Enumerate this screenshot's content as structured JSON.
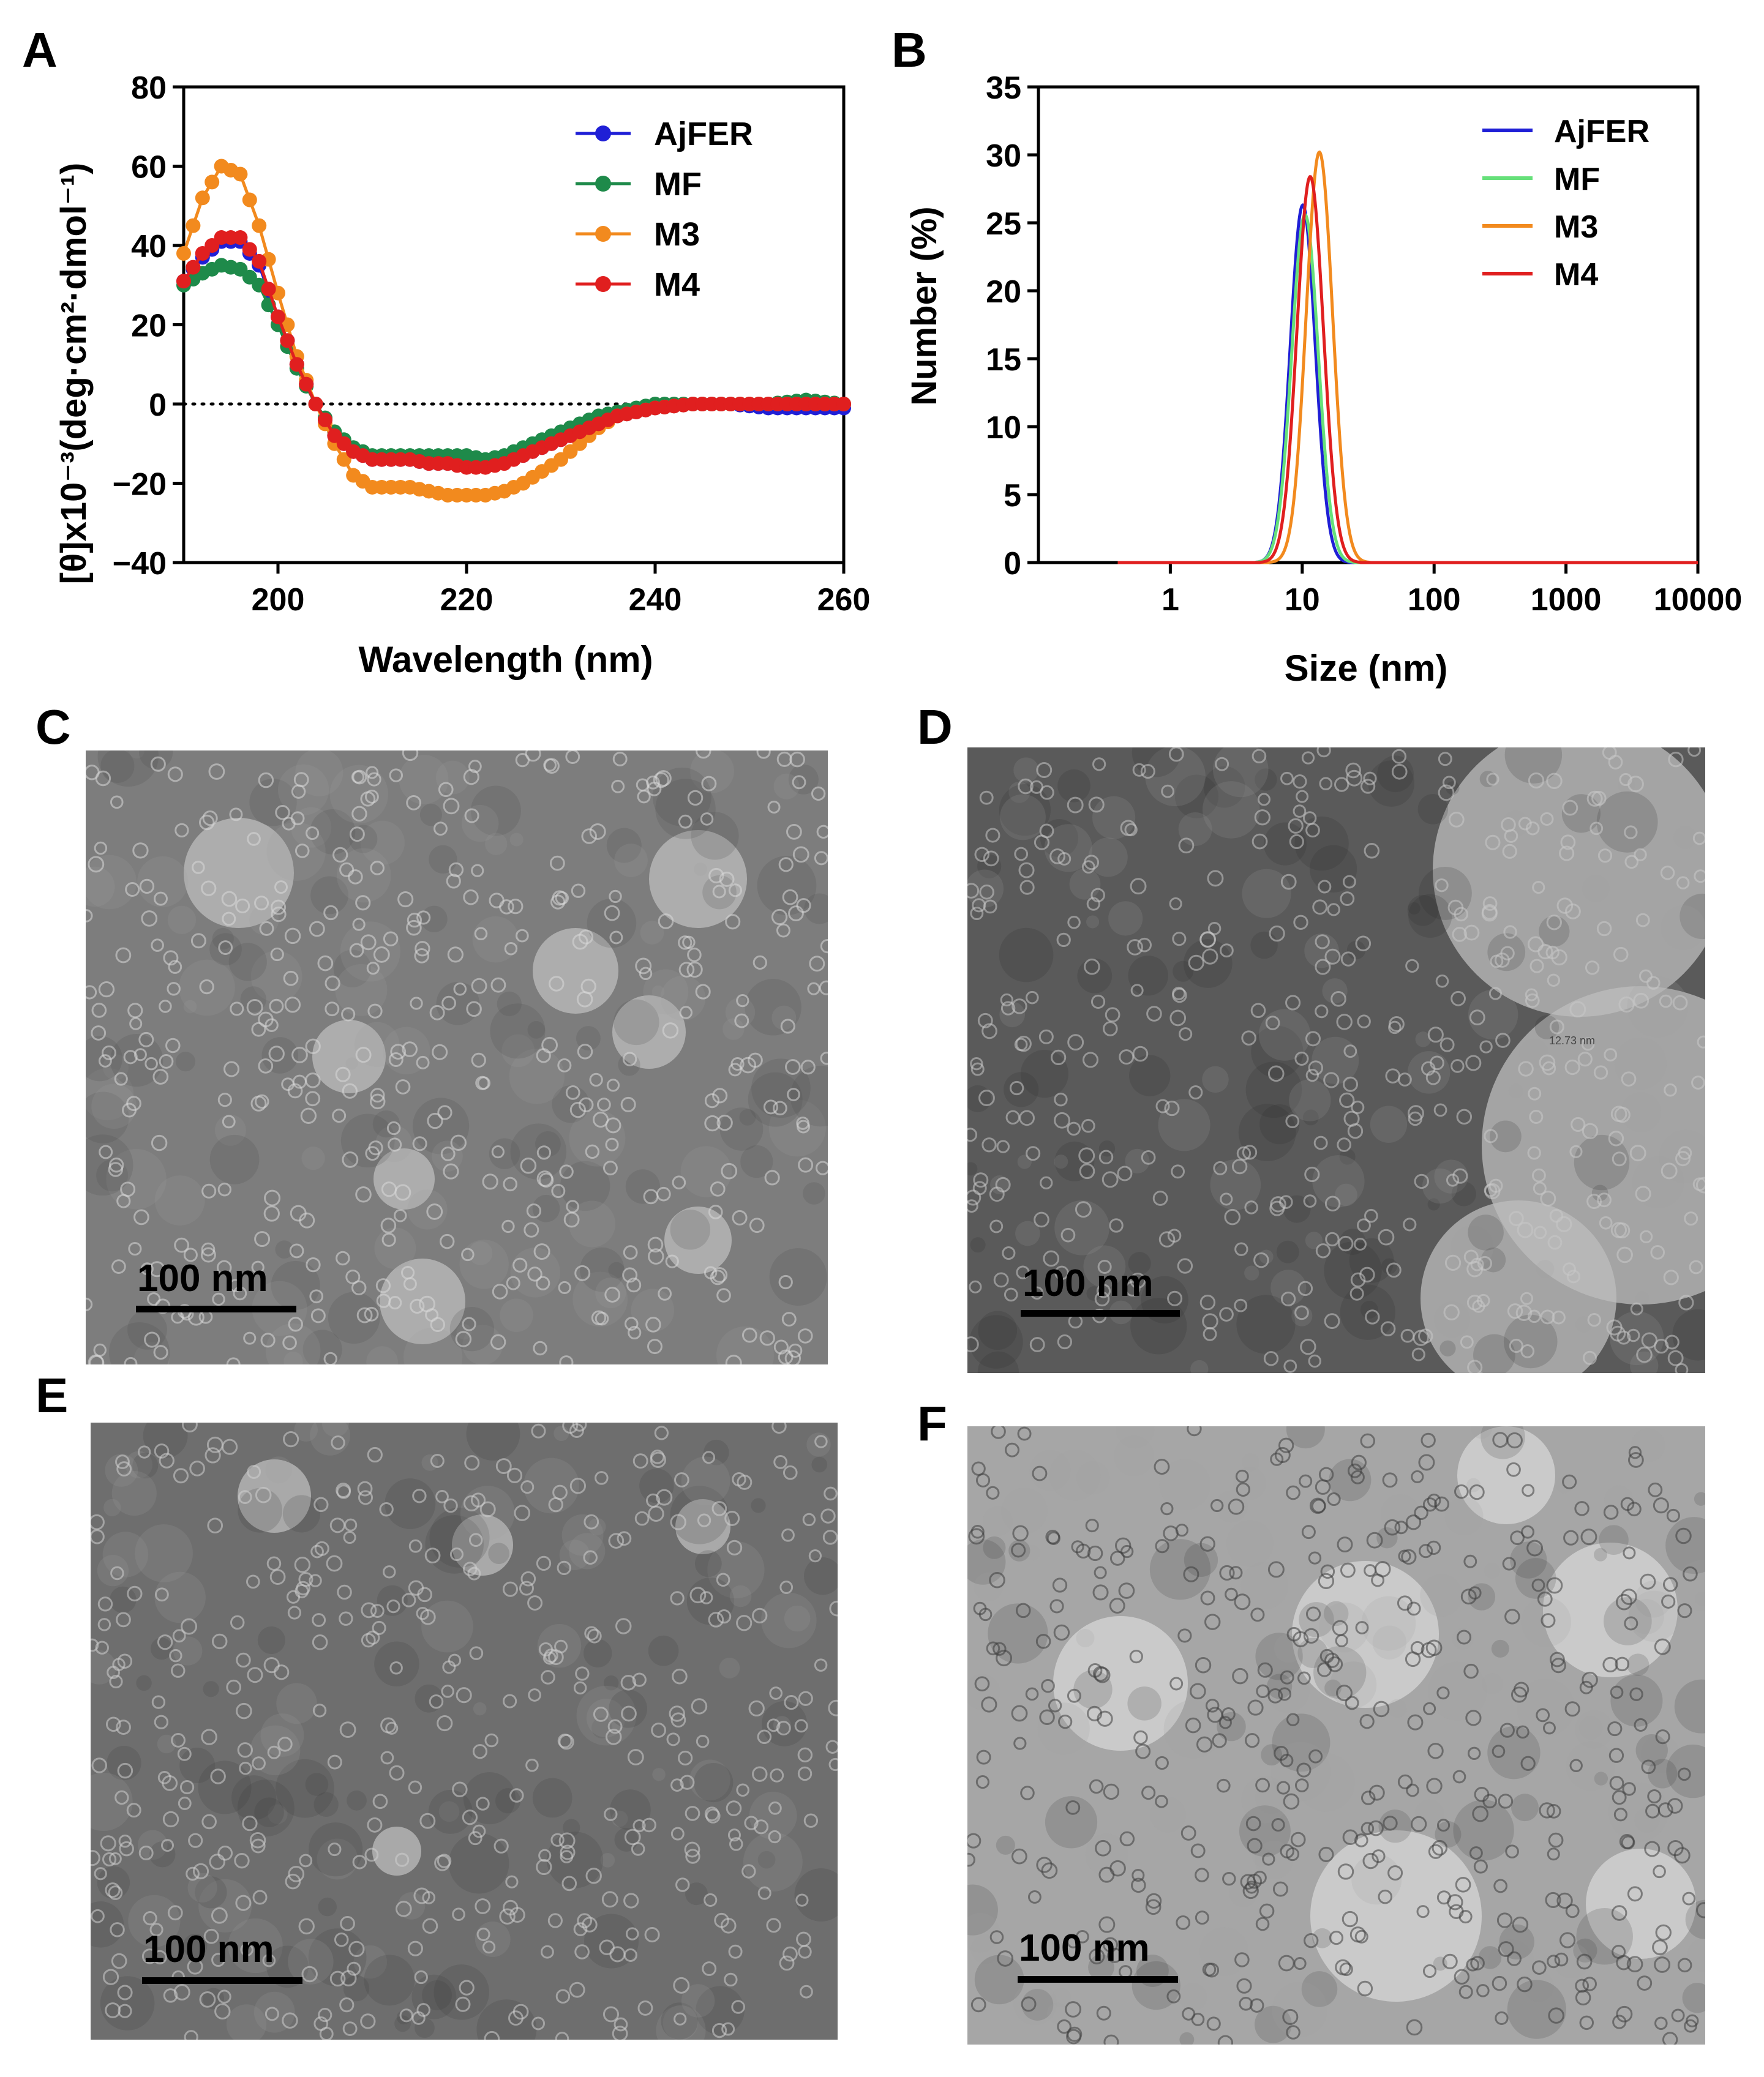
{
  "panels": {
    "a": "A",
    "b": "B",
    "c": "C",
    "d": "D",
    "e": "E",
    "f": "F"
  },
  "chart_data": [
    {
      "panel": "A",
      "type": "line",
      "title": "",
      "xlabel": "Wavelength (nm)",
      "ylabel": "[θ]x10⁻³(deg·cm²·dmol⁻¹)",
      "xlim": [
        190,
        260
      ],
      "ylim": [
        -40,
        80
      ],
      "xticks": [
        200,
        220,
        240,
        260
      ],
      "yticks": [
        -40,
        -20,
        0,
        20,
        40,
        60,
        80
      ],
      "reference_line": {
        "y": 0,
        "style": "dotted"
      },
      "legend_position": "top-right",
      "series": [
        {
          "name": "AjFER",
          "color": "#1f1fd6",
          "x": [
            190,
            192,
            194,
            196,
            198,
            200,
            202,
            204,
            206,
            208,
            210,
            212,
            214,
            216,
            218,
            220,
            222,
            224,
            226,
            228,
            230,
            232,
            234,
            236,
            238,
            240,
            244,
            248,
            252,
            256,
            260
          ],
          "y": [
            31,
            37,
            41,
            41,
            35,
            22,
            10,
            0,
            -8,
            -12,
            -14,
            -14,
            -14,
            -15,
            -15,
            -15,
            -15,
            -14,
            -13,
            -11,
            -9,
            -7,
            -5,
            -3,
            -2,
            -1,
            0,
            0,
            -1,
            -1,
            -1
          ]
        },
        {
          "name": "MF",
          "color": "#1e8a4a",
          "x": [
            190,
            192,
            194,
            196,
            198,
            200,
            202,
            204,
            206,
            208,
            210,
            212,
            214,
            216,
            218,
            220,
            222,
            224,
            226,
            228,
            230,
            232,
            234,
            236,
            238,
            240,
            244,
            248,
            252,
            256,
            260
          ],
          "y": [
            30,
            33,
            35,
            34,
            30,
            20,
            9,
            0,
            -7,
            -11,
            -13,
            -13,
            -13,
            -13,
            -13,
            -13,
            -14,
            -13,
            -11,
            -9,
            -7,
            -5,
            -3,
            -2,
            -1,
            0,
            0,
            0,
            0,
            1,
            0
          ]
        },
        {
          "name": "M3",
          "color": "#f28a1e",
          "x": [
            190,
            192,
            194,
            196,
            198,
            200,
            202,
            204,
            206,
            208,
            210,
            212,
            214,
            216,
            218,
            220,
            222,
            224,
            226,
            228,
            230,
            232,
            234,
            236,
            238,
            240,
            244,
            248,
            252,
            256,
            260
          ],
          "y": [
            38,
            52,
            60,
            58,
            45,
            28,
            12,
            0,
            -10,
            -18,
            -21,
            -21,
            -21,
            -22,
            -23,
            -23,
            -23,
            -22,
            -20,
            -17,
            -14,
            -10,
            -6,
            -3,
            -2,
            -1,
            0,
            0,
            0,
            0,
            0
          ]
        },
        {
          "name": "M4",
          "color": "#e01f1f",
          "x": [
            190,
            192,
            194,
            196,
            198,
            200,
            202,
            204,
            206,
            208,
            210,
            212,
            214,
            216,
            218,
            220,
            222,
            224,
            226,
            228,
            230,
            232,
            234,
            236,
            238,
            240,
            244,
            248,
            252,
            256,
            260
          ],
          "y": [
            31,
            38,
            42,
            42,
            36,
            22,
            10,
            0,
            -8,
            -12,
            -14,
            -14,
            -14,
            -15,
            -15,
            -16,
            -16,
            -15,
            -13,
            -11,
            -9,
            -7,
            -5,
            -3,
            -2,
            -1,
            0,
            0,
            0,
            0,
            0
          ]
        }
      ]
    },
    {
      "panel": "B",
      "type": "line",
      "title": "",
      "xlabel": "Size (nm)",
      "ylabel": "Number (%)",
      "xscale": "log",
      "xlim": [
        0.1,
        10000
      ],
      "ylim": [
        0,
        35
      ],
      "xtick_values": [
        1,
        10,
        100,
        1000,
        10000
      ],
      "xtick_labels": [
        "1",
        "10",
        "100",
        "1000",
        "10000"
      ],
      "yticks": [
        0,
        5,
        10,
        15,
        20,
        25,
        30,
        35
      ],
      "legend_position": "top-right",
      "series": [
        {
          "name": "AjFER",
          "color": "#1f1fd6",
          "peak_x": 10.1,
          "peak_y": 26.3,
          "sigma_log": 0.095
        },
        {
          "name": "MF",
          "color": "#66e07a",
          "peak_x": 10.5,
          "peak_y": 25.6,
          "sigma_log": 0.1
        },
        {
          "name": "M3",
          "color": "#f28a1e",
          "peak_x": 13.5,
          "peak_y": 30.2,
          "sigma_log": 0.1
        },
        {
          "name": "M4",
          "color": "#e01f1f",
          "peak_x": 11.5,
          "peak_y": 28.4,
          "sigma_log": 0.1
        }
      ]
    }
  ],
  "tem": {
    "c": {
      "scale_label": "100 nm"
    },
    "d": {
      "scale_label": "100 nm",
      "annotation": "12.73 nm"
    },
    "e": {
      "scale_label": "100 nm"
    },
    "f": {
      "scale_label": "100 nm"
    }
  }
}
